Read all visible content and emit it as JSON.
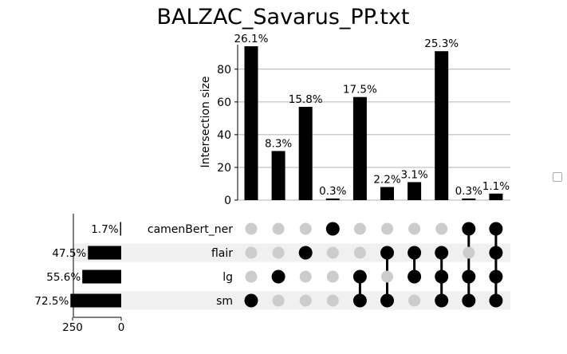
{
  "chart_data": {
    "type": "upset",
    "title": "BALZAC_Savarus_PP.txt",
    "ylabel": "Intersection size",
    "ylim": [
      0,
      95
    ],
    "yticks": [
      0,
      20,
      40,
      60,
      80
    ],
    "sets": [
      {
        "name": "camenBert_ner",
        "size": 6,
        "label": "1.7%"
      },
      {
        "name": "flair",
        "size": 171,
        "label": "47.5%"
      },
      {
        "name": "lg",
        "size": 200,
        "label": "55.6%"
      },
      {
        "name": "sm",
        "size": 261,
        "label": "72.5%"
      }
    ],
    "set_size_ticks": [
      250,
      0
    ],
    "set_size_max": 265,
    "intersections": [
      {
        "members": [
          "sm"
        ],
        "value": 94,
        "label": "26.1%"
      },
      {
        "members": [
          "lg"
        ],
        "value": 30,
        "label": "8.3%"
      },
      {
        "members": [
          "flair"
        ],
        "value": 57,
        "label": "15.8%"
      },
      {
        "members": [
          "camenBert_ner"
        ],
        "value": 1,
        "label": "0.3%"
      },
      {
        "members": [
          "lg",
          "sm"
        ],
        "value": 63,
        "label": "17.5%"
      },
      {
        "members": [
          "flair",
          "sm"
        ],
        "value": 8,
        "label": "2.2%"
      },
      {
        "members": [
          "flair",
          "lg"
        ],
        "value": 11,
        "label": "3.1%"
      },
      {
        "members": [
          "flair",
          "lg",
          "sm"
        ],
        "value": 91,
        "label": "25.3%"
      },
      {
        "members": [
          "camenBert_ner",
          "lg",
          "sm"
        ],
        "value": 1,
        "label": "0.3%"
      },
      {
        "members": [
          "camenBert_ner",
          "flair",
          "lg",
          "sm"
        ],
        "value": 4,
        "label": "1.1%"
      }
    ],
    "grid": true
  }
}
